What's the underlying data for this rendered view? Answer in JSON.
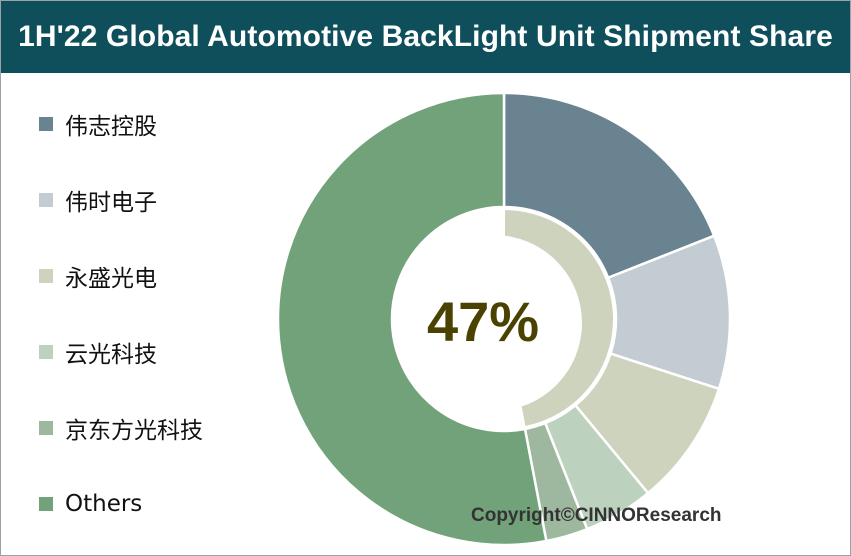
{
  "chart_data": {
    "type": "pie",
    "title": "1H'22 Global Automotive BackLight Unit Shipment Share",
    "center_label": "47%",
    "series": [
      {
        "name": "伟志控股",
        "value": 19,
        "color": "#6a8390"
      },
      {
        "name": "伟时电子",
        "value": 11,
        "color": "#c3ccd3"
      },
      {
        "name": "永盛光电",
        "value": 9,
        "color": "#ced3bd"
      },
      {
        "name": "云光科技",
        "value": 5,
        "color": "#bdd1bf"
      },
      {
        "name": "京东方光科技",
        "value": 3,
        "color": "#9db89f"
      },
      {
        "name": "Others",
        "value": 53,
        "color": "#71a27a"
      }
    ],
    "inner_ring_color": "#ced3bd",
    "legend_position": "left"
  },
  "copyright": "Copyright©CINNOResearch",
  "colors": {
    "title_bar": "#0f4f5c",
    "title_text": "#ffffff",
    "center_text": "#4a4200"
  }
}
